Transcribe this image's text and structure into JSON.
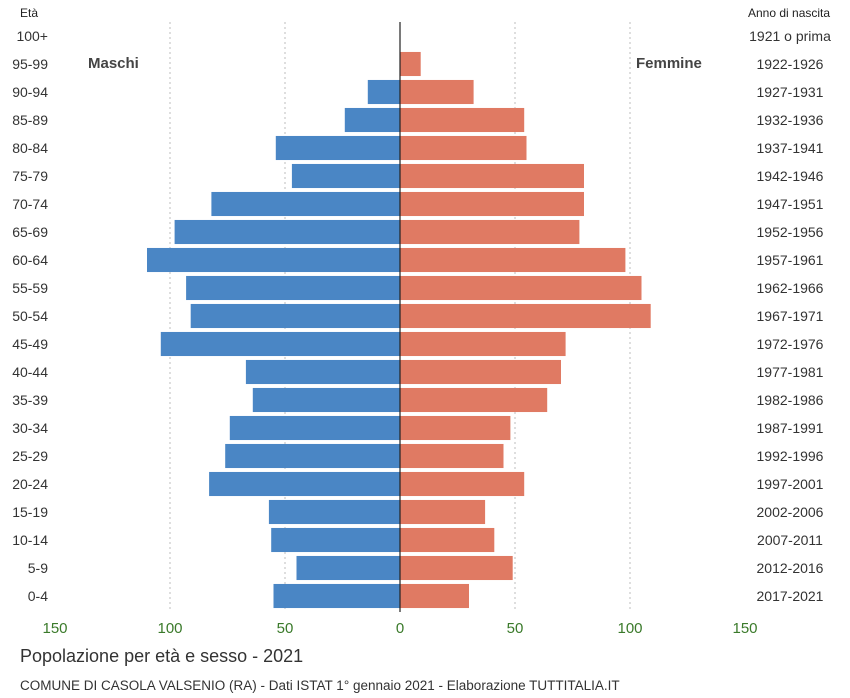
{
  "chart_data": {
    "type": "bar",
    "orientation": "horizontal",
    "title": "Popolazione per età e sesso - 2021",
    "footer": "COMUNE DI CASOLA VALSENIO (RA) - Dati ISTAT 1° gennaio 2021 - Elaborazione TUTTITALIA.IT",
    "left_axis_header": "Età",
    "right_axis_header": "Anno di nascita",
    "categories": [
      "100+",
      "95-99",
      "90-94",
      "85-89",
      "80-84",
      "75-79",
      "70-74",
      "65-69",
      "60-64",
      "55-59",
      "50-54",
      "45-49",
      "40-44",
      "35-39",
      "30-34",
      "25-29",
      "20-24",
      "15-19",
      "10-14",
      "5-9",
      "0-4"
    ],
    "birth_years": [
      "1921 o prima",
      "1922-1926",
      "1927-1931",
      "1932-1936",
      "1937-1941",
      "1942-1946",
      "1947-1951",
      "1952-1956",
      "1957-1961",
      "1962-1966",
      "1967-1971",
      "1972-1976",
      "1977-1981",
      "1982-1986",
      "1987-1991",
      "1992-1996",
      "1997-2001",
      "2002-2006",
      "2007-2011",
      "2012-2016",
      "2017-2021"
    ],
    "series": [
      {
        "name": "Maschi",
        "color": "#4a86c5",
        "values": [
          0,
          0,
          14,
          24,
          54,
          47,
          82,
          98,
          110,
          93,
          91,
          104,
          67,
          64,
          74,
          76,
          83,
          57,
          56,
          45,
          55
        ]
      },
      {
        "name": "Femmine",
        "color": "#e07a63",
        "values": [
          0,
          9,
          32,
          54,
          55,
          80,
          80,
          78,
          98,
          105,
          109,
          72,
          70,
          64,
          48,
          45,
          54,
          37,
          41,
          49,
          30
        ]
      }
    ],
    "xlim": [
      -150,
      150
    ],
    "xticks": [
      -150,
      -100,
      -50,
      0,
      50,
      100,
      150
    ],
    "xtick_labels": [
      "150",
      "100",
      "50",
      "0",
      "50",
      "100",
      "150"
    ],
    "grid": true
  }
}
